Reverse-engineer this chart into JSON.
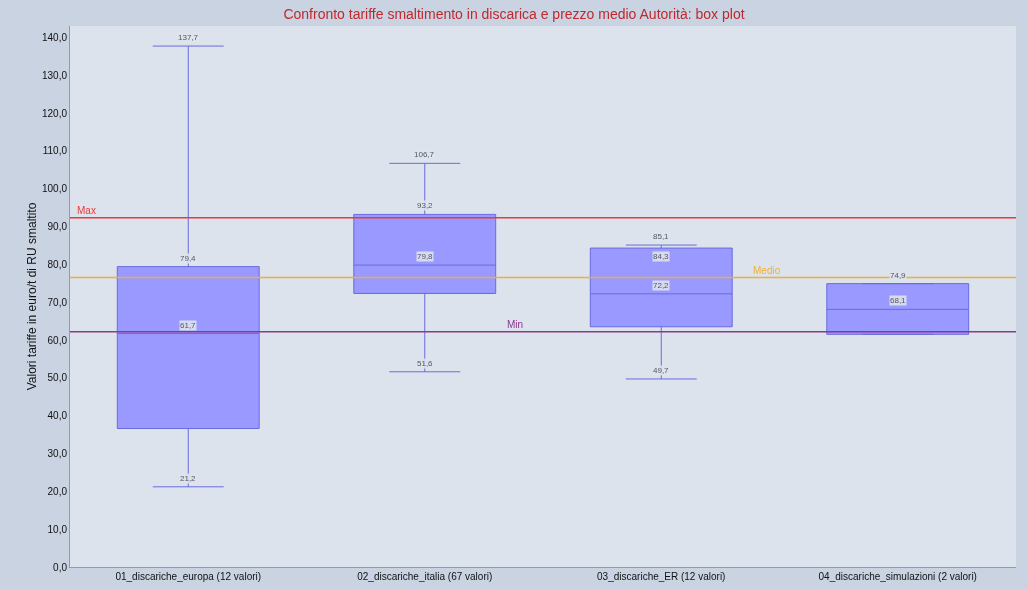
{
  "chart_data": {
    "type": "box",
    "title": "Confronto tariffe smaltimento in discarica e prezzo medio Autorità: box plot",
    "ylabel": "Valori tariffe in euro/t di RU smaltito",
    "categories": [
      "01_discariche_europa (12 valori)",
      "02_discariche_italia (67 valori)",
      "03_discariche_ER (12 valori)",
      "04_discariche_simulazioni (2 valori)"
    ],
    "color": "#9999ff",
    "boxes": [
      {
        "low": 21.2,
        "q1": 36.6,
        "median": 61.7,
        "q3": 79.4,
        "high": 137.7
      },
      {
        "low": 51.6,
        "q1": 72.3,
        "median": 79.8,
        "q3": 93.2,
        "high": 106.7
      },
      {
        "low": 49.7,
        "q1": 63.5,
        "median": 72.2,
        "q3": 84.3,
        "high": 85.1
      },
      {
        "low": 61.5,
        "q1": 61.5,
        "median": 68.1,
        "q3": 74.9,
        "high": 74.9
      }
    ],
    "ylim": [
      0,
      143
    ],
    "yticks": [
      {
        "value": 0,
        "label": "0,0"
      },
      {
        "value": 10,
        "label": "10,0"
      },
      {
        "value": 20,
        "label": "20,0"
      },
      {
        "value": 30,
        "label": "30,0"
      },
      {
        "value": 40,
        "label": "40,0"
      },
      {
        "value": 50,
        "label": "50,0"
      },
      {
        "value": 60,
        "label": "60,0"
      },
      {
        "value": 70,
        "label": "70,0"
      },
      {
        "value": 80,
        "label": "80,0"
      },
      {
        "value": 90,
        "label": "90,0"
      },
      {
        "value": 100,
        "label": "100,0"
      },
      {
        "value": 110,
        "label": "110,0"
      },
      {
        "value": 120,
        "label": "120,0"
      },
      {
        "value": 130,
        "label": "130,0"
      },
      {
        "value": 140,
        "label": "140,0"
      }
    ],
    "ref_lines": [
      {
        "axis": "y",
        "value": 92.3,
        "label": "Max",
        "color": "#e83a3a"
      },
      {
        "axis": "y",
        "value": 76.5,
        "label": "Medio",
        "color": "#f0b030"
      },
      {
        "axis": "y",
        "value": 62.2,
        "label": "Min",
        "color": "#8a3a8a"
      }
    ],
    "annotations": [
      {
        "text": "137,7",
        "x": "01_discariche_europa (12 valori)",
        "y": 137.7
      },
      {
        "text": "79,4",
        "x": "01_discariche_europa (12 valori)",
        "y": 79.4
      },
      {
        "text": "61,7",
        "x": "01_discariche_europa (12 valori)",
        "y": 61.7
      },
      {
        "text": "21,2",
        "x": "01_discariche_europa (12 valori)",
        "y": 21.2
      },
      {
        "text": "106,7",
        "x": "02_discariche_italia (67 valori)",
        "y": 106.7
      },
      {
        "text": "93,2",
        "x": "02_discariche_italia (67 valori)",
        "y": 93.2
      },
      {
        "text": "79,8",
        "x": "02_discariche_italia (67 valori)",
        "y": 79.8
      },
      {
        "text": "51,6",
        "x": "02_discariche_italia (67 valori)",
        "y": 51.6
      },
      {
        "text": "85,1",
        "x": "03_discariche_ER (12 valori)",
        "y": 85.1
      },
      {
        "text": "84,3",
        "x": "03_discariche_ER (12 valori)",
        "y": 84.3
      },
      {
        "text": "72,2",
        "x": "03_discariche_ER (12 valori)",
        "y": 72.2
      },
      {
        "text": "49,7",
        "x": "03_discariche_ER (12 valori)",
        "y": 49.7
      },
      {
        "text": "74,9",
        "x": "04_discariche_simulazioni (2 valori)",
        "y": 74.9
      },
      {
        "text": "68,1",
        "x": "04_discariche_simulazioni (2 valori)",
        "y": 68.1
      }
    ]
  }
}
